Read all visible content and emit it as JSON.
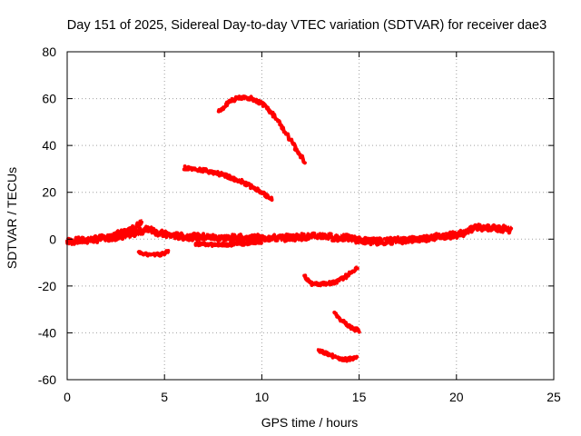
{
  "chart_data": {
    "type": "line",
    "title": "Day 151 of 2025, Sidereal Day-to-day VTEC variation (SDTVAR) for receiver dae3",
    "xlabel": "GPS time / hours",
    "ylabel": "SDTVAR / TECUs",
    "xlim": [
      0,
      25
    ],
    "ylim": [
      -60,
      80
    ],
    "xticks": [
      0,
      5,
      10,
      15,
      20,
      25
    ],
    "yticks": [
      -60,
      -40,
      -20,
      0,
      20,
      40,
      60,
      80
    ],
    "grid": true,
    "line_color": "#ff0000",
    "series": [
      {
        "name": "arc-baseline",
        "noise": 1.5,
        "points": [
          [
            0,
            -1
          ],
          [
            1,
            -0.5
          ],
          [
            2,
            0.5
          ],
          [
            3,
            1.5
          ],
          [
            3.7,
            3
          ],
          [
            4,
            4
          ],
          [
            4.3,
            4.5
          ],
          [
            4.6,
            3
          ],
          [
            5,
            2
          ],
          [
            6,
            1
          ],
          [
            7,
            1
          ],
          [
            8,
            0.5
          ],
          [
            9,
            0.5
          ],
          [
            10,
            0.5
          ],
          [
            11,
            0.5
          ],
          [
            12,
            1
          ],
          [
            12.5,
            1
          ],
          [
            13,
            1.5
          ],
          [
            14,
            0.5
          ],
          [
            14.5,
            0.5
          ],
          [
            15,
            -0.5
          ],
          [
            16,
            -1
          ],
          [
            17,
            -0.5
          ],
          [
            18,
            0
          ],
          [
            19,
            1
          ],
          [
            20,
            2
          ],
          [
            20.5,
            3
          ],
          [
            21,
            5
          ],
          [
            21.5,
            5
          ],
          [
            22,
            4.5
          ],
          [
            22.5,
            4.5
          ],
          [
            22.8,
            4
          ]
        ]
      },
      {
        "name": "arc-ramp-early",
        "noise": 1.5,
        "points": [
          [
            2.2,
            1
          ],
          [
            3,
            3
          ],
          [
            3.5,
            5
          ],
          [
            3.8,
            7
          ]
        ]
      },
      {
        "name": "arc-low-4",
        "noise": 0.7,
        "points": [
          [
            3.7,
            -6
          ],
          [
            4.2,
            -6.5
          ],
          [
            4.8,
            -6.5
          ],
          [
            5.2,
            -5.5
          ]
        ]
      },
      {
        "name": "arc-low-7",
        "noise": 0.7,
        "points": [
          [
            6.6,
            -2
          ],
          [
            7.5,
            -2.3
          ],
          [
            8.5,
            -2.3
          ],
          [
            9.5,
            -1.5
          ],
          [
            10,
            -1
          ]
        ]
      },
      {
        "name": "arc-upper-30",
        "noise": 0.8,
        "points": [
          [
            6,
            30.5
          ],
          [
            7,
            29.5
          ],
          [
            8,
            27.5
          ],
          [
            9,
            24.5
          ],
          [
            10,
            20
          ],
          [
            10.5,
            17
          ]
        ]
      },
      {
        "name": "arc-upper-60",
        "noise": 0.8,
        "points": [
          [
            7.8,
            54
          ],
          [
            8.3,
            58.5
          ],
          [
            8.8,
            60.5
          ],
          [
            9.5,
            60
          ],
          [
            10.2,
            57
          ],
          [
            10.8,
            51
          ],
          [
            11.5,
            42
          ],
          [
            12.2,
            33
          ]
        ]
      },
      {
        "name": "arc-low-18",
        "noise": 0.8,
        "points": [
          [
            12.2,
            -16
          ],
          [
            12.6,
            -19
          ],
          [
            13.2,
            -19
          ],
          [
            13.8,
            -18.5
          ],
          [
            14.3,
            -16
          ],
          [
            14.9,
            -12
          ]
        ]
      },
      {
        "name": "arc-low-35",
        "noise": 0.8,
        "points": [
          [
            13.7,
            -31
          ],
          [
            14.1,
            -35
          ],
          [
            14.6,
            -38
          ],
          [
            15,
            -39
          ]
        ]
      },
      {
        "name": "arc-low-50",
        "noise": 0.8,
        "points": [
          [
            12.9,
            -47.5
          ],
          [
            13.5,
            -49.5
          ],
          [
            14.2,
            -51.5
          ],
          [
            14.9,
            -50.5
          ]
        ]
      }
    ]
  }
}
